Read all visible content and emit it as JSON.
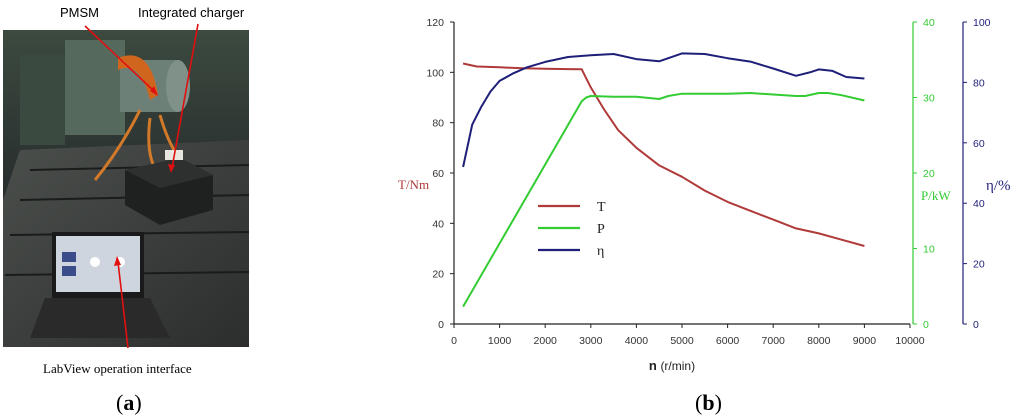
{
  "panel_a": {
    "label_open": "(",
    "label_letter": "a",
    "label_close": ")",
    "annotations": {
      "pmsm": "PMSM",
      "charger": "Integrated charger",
      "labview": "LabView operation interface"
    }
  },
  "panel_b": {
    "label_open": "(",
    "label_letter": "b",
    "label_close": ")"
  },
  "colors": {
    "torque": "#b03a3a",
    "power": "#33cc33",
    "efficiency": "#1f1f7a",
    "annotation_arrow": "#e01010"
  },
  "chart_data": {
    "type": "line",
    "xlabel_symbol": "n",
    "xlabel_unit": "(r/min)",
    "xlim": [
      0,
      10000
    ],
    "x_ticks": [
      0,
      1000,
      2000,
      3000,
      4000,
      5000,
      6000,
      7000,
      8000,
      9000,
      10000
    ],
    "grid": false,
    "legend_position": "middle-left",
    "axes": {
      "torque": {
        "label": "T/Nm",
        "ylim": [
          0,
          120
        ],
        "ticks": [
          0,
          20,
          40,
          60,
          80,
          100,
          120
        ]
      },
      "power": {
        "label": "P/kW",
        "ylim": [
          0,
          40
        ],
        "ticks": [
          0,
          10,
          20,
          30,
          40
        ]
      },
      "efficiency": {
        "label": "η/%",
        "ylim": [
          0,
          100
        ],
        "ticks": [
          0,
          20,
          40,
          60,
          80,
          100
        ]
      }
    },
    "series": [
      {
        "name": "T",
        "axis": "torque",
        "x": [
          200,
          500,
          1000,
          1500,
          2000,
          2500,
          2800,
          3000,
          3300,
          3600,
          4000,
          4500,
          5000,
          5500,
          6000,
          6500,
          7000,
          7500,
          8000,
          8500,
          9000
        ],
        "y": [
          103.5,
          102.3,
          102,
          101.6,
          101.4,
          101.3,
          101.2,
          94,
          85,
          77,
          70,
          63,
          58.5,
          53,
          48.5,
          45,
          41.5,
          38,
          36,
          33.5,
          31
        ]
      },
      {
        "name": "P",
        "axis": "power",
        "x": [
          200,
          2800,
          2900,
          3000,
          3500,
          4000,
          4500,
          4700,
          5000,
          5500,
          6000,
          6500,
          7000,
          7500,
          7700,
          8000,
          8200,
          8500,
          9000
        ],
        "y": [
          2.3,
          29.5,
          30,
          30.2,
          30.1,
          30.1,
          29.8,
          30.2,
          30.5,
          30.5,
          30.5,
          30.6,
          30.4,
          30.2,
          30.2,
          30.6,
          30.6,
          30.3,
          29.6
        ]
      },
      {
        "name": "η",
        "axis": "efficiency",
        "x": [
          200,
          400,
          600,
          800,
          1000,
          1300,
          1600,
          2000,
          2500,
          3000,
          3500,
          4000,
          4500,
          5000,
          5500,
          6000,
          6500,
          7000,
          7500,
          7800,
          8000,
          8300,
          8600,
          9000
        ],
        "y": [
          52,
          66,
          72,
          77,
          80.5,
          83,
          85,
          86.8,
          88.4,
          89,
          89.4,
          87.7,
          87,
          89.6,
          89.4,
          88,
          86.9,
          84.6,
          82.2,
          83.3,
          84.3,
          83.8,
          81.8,
          81.3
        ]
      }
    ]
  }
}
